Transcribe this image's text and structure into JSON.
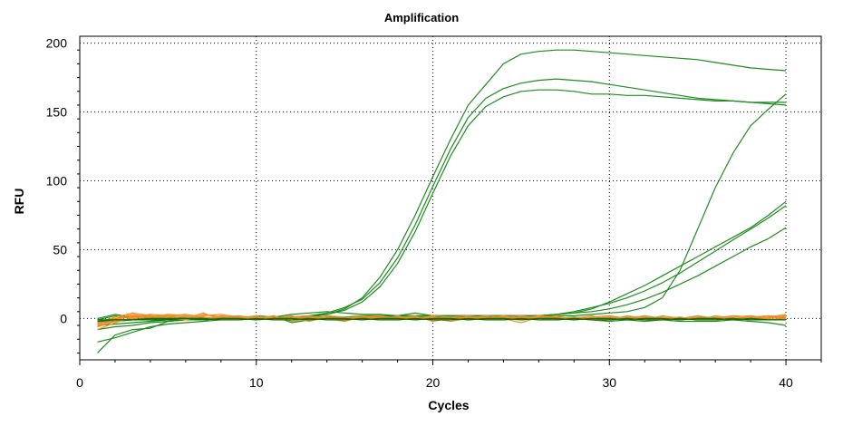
{
  "chart_data": {
    "type": "line",
    "title": "Amplification",
    "xlabel": "Cycles",
    "ylabel": "RFU",
    "xlim": [
      0,
      42
    ],
    "ylim": [
      -30,
      205
    ],
    "xticks": [
      0,
      10,
      20,
      30,
      40
    ],
    "yticks": [
      0,
      50,
      100,
      150,
      200
    ],
    "grid": true,
    "legend": "none",
    "colors": {
      "green": "#1e8c1e",
      "orange": "#f28c28",
      "dark_green": "#0b6e0b",
      "grid": "#000000"
    },
    "x": [
      1,
      2,
      3,
      4,
      5,
      6,
      7,
      8,
      9,
      10,
      11,
      12,
      13,
      14,
      15,
      16,
      17,
      18,
      19,
      20,
      21,
      22,
      23,
      24,
      25,
      26,
      27,
      28,
      29,
      30,
      31,
      32,
      33,
      34,
      35,
      36,
      37,
      38,
      39,
      40
    ],
    "series": [
      {
        "color": "#1e8c1e",
        "values": [
          -2,
          -1,
          -1,
          0,
          -1,
          0,
          0,
          -1,
          0,
          0,
          0,
          1,
          1,
          3,
          7,
          15,
          30,
          50,
          75,
          103,
          130,
          155,
          170,
          185,
          192,
          194,
          195,
          195,
          194,
          193,
          192,
          191,
          190,
          189,
          188,
          186,
          184,
          182,
          181,
          180
        ]
      },
      {
        "color": "#1e8c1e",
        "values": [
          -3,
          -2,
          -1,
          -1,
          0,
          0,
          -1,
          0,
          0,
          0,
          1,
          1,
          2,
          4,
          8,
          14,
          26,
          44,
          68,
          96,
          123,
          146,
          160,
          167,
          171,
          173,
          174,
          173,
          172,
          170,
          168,
          166,
          164,
          162,
          160,
          159,
          158,
          157,
          156,
          155
        ]
      },
      {
        "color": "#1e8c1e",
        "values": [
          -2,
          -2,
          -1,
          -1,
          0,
          0,
          0,
          0,
          1,
          0,
          1,
          1,
          2,
          3,
          6,
          12,
          23,
          40,
          63,
          91,
          118,
          140,
          154,
          161,
          165,
          166,
          166,
          165,
          163,
          163,
          162,
          162,
          161,
          160,
          159,
          158,
          158,
          157,
          157,
          157
        ]
      },
      {
        "color": "#1e8c1e",
        "values": [
          -25,
          -12,
          -8,
          -7,
          -2,
          -1,
          -1,
          0,
          0,
          1,
          0,
          1,
          1,
          1,
          1,
          2,
          2,
          2,
          2,
          2,
          2,
          2,
          2,
          2,
          2,
          2,
          2,
          2,
          3,
          4,
          5,
          8,
          15,
          35,
          65,
          95,
          120,
          140,
          152,
          163
        ]
      },
      {
        "color": "#1e8c1e",
        "values": [
          -17,
          -14,
          -10,
          -6,
          -4,
          -3,
          -2,
          -1,
          -1,
          0,
          0,
          0,
          0,
          1,
          1,
          1,
          1,
          2,
          2,
          2,
          2,
          2,
          2,
          2,
          2,
          2,
          3,
          4,
          7,
          12,
          18,
          24,
          31,
          38,
          45,
          52,
          59,
          66,
          75,
          85
        ]
      },
      {
        "color": "#1e8c1e",
        "values": [
          -8,
          -6,
          -5,
          -3,
          -2,
          -1,
          -1,
          0,
          0,
          0,
          0,
          0,
          1,
          1,
          1,
          1,
          1,
          1,
          1,
          2,
          2,
          2,
          2,
          2,
          2,
          2,
          3,
          5,
          8,
          11,
          15,
          20,
          26,
          33,
          41,
          49,
          57,
          65,
          73,
          82
        ]
      },
      {
        "color": "#1e8c1e",
        "values": [
          -5,
          -4,
          -3,
          -2,
          -1,
          -1,
          0,
          0,
          0,
          0,
          0,
          0,
          0,
          0,
          1,
          1,
          1,
          1,
          1,
          1,
          1,
          1,
          1,
          1,
          2,
          2,
          3,
          4,
          5,
          7,
          10,
          14,
          19,
          25,
          31,
          38,
          45,
          52,
          58,
          66
        ]
      },
      {
        "color": "#1e8c1e",
        "values": [
          -1,
          2,
          0,
          1,
          -1,
          0,
          1,
          -1,
          0,
          2,
          1,
          3,
          4,
          5,
          4,
          3,
          3,
          2,
          4,
          2,
          1,
          2,
          1,
          0,
          1,
          0,
          -1,
          0,
          -1,
          -2,
          -1,
          -2,
          -1,
          -2,
          -2,
          -2,
          -1,
          -2,
          -3,
          -5
        ]
      },
      {
        "color": "#1e8c1e",
        "values": [
          0,
          3,
          1,
          2,
          0,
          1,
          -1,
          0,
          1,
          -1,
          2,
          -3,
          -1,
          2,
          -1,
          0,
          2,
          1,
          0,
          -1,
          0,
          1,
          -1,
          0,
          1,
          2,
          0,
          1,
          -1,
          0,
          1,
          0,
          -1,
          0,
          1,
          0,
          -1,
          0,
          1,
          0
        ]
      },
      {
        "color": "#f28c28",
        "values": [
          -4,
          0,
          3,
          1,
          2,
          -1,
          3,
          1,
          0,
          2,
          -1,
          1,
          2,
          0,
          -2,
          1,
          2,
          0,
          1,
          -1,
          1,
          2,
          0,
          -1,
          1,
          0,
          2,
          -1,
          0,
          1,
          -1,
          2,
          0,
          1,
          -1,
          0,
          1,
          2,
          0,
          1
        ]
      },
      {
        "color": "#f28c28",
        "values": [
          -6,
          -2,
          0,
          2,
          1,
          0,
          4,
          -1,
          1,
          0,
          2,
          -2,
          0,
          1,
          -1,
          2,
          0,
          -1,
          1,
          0,
          -2,
          0,
          2,
          1,
          -1,
          0,
          1,
          0,
          2,
          -1,
          0,
          1,
          -1,
          0,
          2,
          0,
          -1,
          1,
          0,
          2
        ]
      },
      {
        "color": "#f28c28",
        "values": [
          -8,
          -3,
          1,
          0,
          2,
          3,
          1,
          0,
          -1,
          1,
          0,
          2,
          -1,
          0,
          1,
          0,
          -1,
          2,
          -1,
          0,
          1,
          -1,
          0,
          2,
          0,
          1,
          -1,
          1,
          0,
          -1,
          2,
          0,
          1,
          -1,
          0,
          1,
          0,
          -1,
          1,
          3
        ]
      },
      {
        "color": "#f28c28",
        "values": [
          -3,
          1,
          4,
          2,
          0,
          -1,
          2,
          3,
          1,
          -1,
          0,
          1,
          -2,
          1,
          0,
          -1,
          1,
          0,
          2,
          -2,
          0,
          1,
          -1,
          0,
          -3,
          1,
          0,
          -1,
          1,
          2,
          0,
          -1,
          0,
          1,
          -1,
          2,
          0,
          1,
          -1,
          0
        ]
      },
      {
        "color": "#f28c28",
        "values": [
          -5,
          -1,
          2,
          1,
          3,
          2,
          0,
          1,
          2,
          0,
          -1,
          0,
          1,
          -1,
          0,
          2,
          -1,
          1,
          0,
          1,
          -1,
          0,
          1,
          -1,
          0,
          2,
          1,
          0,
          -1,
          0,
          1,
          -1,
          2,
          0,
          -1,
          0,
          2,
          1,
          0,
          2
        ]
      },
      {
        "color": "#f28c28",
        "values": [
          -2,
          0,
          1,
          3,
          2,
          1,
          -1,
          2,
          0,
          1,
          1,
          0,
          -1,
          2,
          1,
          0,
          1,
          -1,
          0,
          2,
          1,
          -1,
          0,
          1,
          2,
          0,
          -1,
          1,
          0,
          1,
          0,
          2,
          -1,
          0,
          1,
          -1,
          0,
          1,
          2,
          1
        ]
      },
      {
        "color": "#0b6e0b",
        "values": [
          -1,
          -1,
          -1,
          0,
          0,
          0,
          -1,
          0,
          0,
          -1,
          0,
          0,
          -1,
          0,
          0,
          -1,
          0,
          0,
          -1,
          0,
          0,
          -1,
          0,
          0,
          -1,
          0,
          0,
          -1,
          0,
          0,
          -1,
          0,
          0,
          -1,
          0,
          0,
          -1,
          0,
          -1,
          -1
        ]
      },
      {
        "color": "#0b6e0b",
        "values": [
          -2,
          -1,
          -1,
          -1,
          -1,
          0,
          0,
          -1,
          -1,
          0,
          -1,
          -1,
          0,
          -1,
          -1,
          0,
          -1,
          -1,
          0,
          -1,
          -1,
          0,
          -1,
          -1,
          0,
          -1,
          -1,
          0,
          -1,
          -1,
          0,
          -1,
          -1,
          0,
          -1,
          -1,
          0,
          -1,
          -1,
          -1
        ]
      }
    ]
  }
}
